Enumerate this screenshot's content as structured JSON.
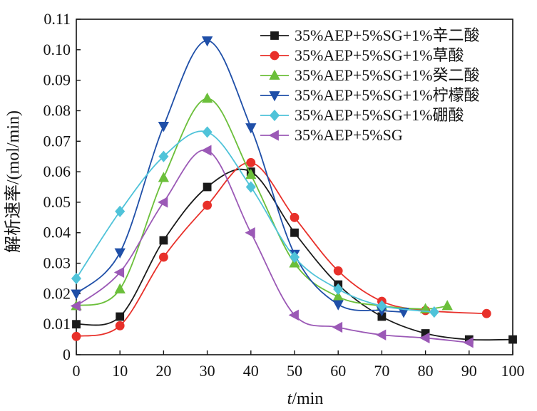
{
  "chart_data": {
    "type": "line",
    "xlabel_italic": "t",
    "xlabel_unit": "/min",
    "ylabel": "解析速率/(mol/min)",
    "xlim": [
      0,
      100
    ],
    "ylim": [
      0,
      0.11
    ],
    "x_ticks": [
      "0",
      "10",
      "20",
      "30",
      "40",
      "50",
      "60",
      "70",
      "80",
      "90",
      "100"
    ],
    "y_ticks": [
      "0",
      "0.01",
      "0.02",
      "0.03",
      "0.04",
      "0.05",
      "0.06",
      "0.07",
      "0.08",
      "0.09",
      "0.10",
      "0.11"
    ],
    "grid": false,
    "legend_position": "top-right",
    "series": [
      {
        "name": "35%AEP+5%SG+1%辛二酸",
        "color": "#1a1a1a",
        "marker": "square",
        "points": [
          [
            0,
            0.01
          ],
          [
            10,
            0.0125
          ],
          [
            20,
            0.0375
          ],
          [
            30,
            0.055
          ],
          [
            40,
            0.06
          ],
          [
            50,
            0.04
          ],
          [
            60,
            0.023
          ],
          [
            70,
            0.0125
          ],
          [
            80,
            0.007
          ],
          [
            90,
            0.005
          ],
          [
            100,
            0.005
          ]
        ]
      },
      {
        "name": "35%AEP+5%SG+1%草酸",
        "color": "#e8302a",
        "marker": "circle",
        "points": [
          [
            0,
            0.006
          ],
          [
            10,
            0.0095
          ],
          [
            20,
            0.032
          ],
          [
            30,
            0.049
          ],
          [
            40,
            0.063
          ],
          [
            50,
            0.045
          ],
          [
            60,
            0.0275
          ],
          [
            70,
            0.0175
          ],
          [
            80,
            0.0145
          ],
          [
            94,
            0.0135
          ]
        ]
      },
      {
        "name": "35%AEP+5%SG+1%癸二酸",
        "color": "#6bbf3a",
        "marker": "triangle-up",
        "points": [
          [
            0,
            0.016
          ],
          [
            10,
            0.0215
          ],
          [
            20,
            0.058
          ],
          [
            30,
            0.084
          ],
          [
            40,
            0.059
          ],
          [
            50,
            0.03
          ],
          [
            60,
            0.019
          ],
          [
            70,
            0.016
          ],
          [
            80,
            0.015
          ],
          [
            85,
            0.016
          ]
        ]
      },
      {
        "name": "35%AEP+5%SG+1%柠檬酸",
        "color": "#1f4fa8",
        "marker": "triangle-down",
        "points": [
          [
            0,
            0.02
          ],
          [
            10,
            0.0335
          ],
          [
            20,
            0.075
          ],
          [
            30,
            0.103
          ],
          [
            40,
            0.0745
          ],
          [
            50,
            0.033
          ],
          [
            60,
            0.0165
          ],
          [
            70,
            0.0145
          ],
          [
            75,
            0.014
          ]
        ]
      },
      {
        "name": "35%AEP+5%SG+1%硼酸",
        "color": "#4fc3d9",
        "marker": "diamond",
        "points": [
          [
            0,
            0.025
          ],
          [
            10,
            0.047
          ],
          [
            20,
            0.065
          ],
          [
            30,
            0.073
          ],
          [
            40,
            0.055
          ],
          [
            50,
            0.032
          ],
          [
            60,
            0.0215
          ],
          [
            70,
            0.016
          ],
          [
            82,
            0.014
          ]
        ]
      },
      {
        "name": "35%AEP+5%SG",
        "color": "#9b59b6",
        "marker": "triangle-left",
        "points": [
          [
            0,
            0.016
          ],
          [
            10,
            0.027
          ],
          [
            20,
            0.05
          ],
          [
            30,
            0.067
          ],
          [
            40,
            0.04
          ],
          [
            50,
            0.013
          ],
          [
            60,
            0.009
          ],
          [
            70,
            0.0065
          ],
          [
            80,
            0.0055
          ],
          [
            90,
            0.004
          ]
        ]
      }
    ]
  }
}
